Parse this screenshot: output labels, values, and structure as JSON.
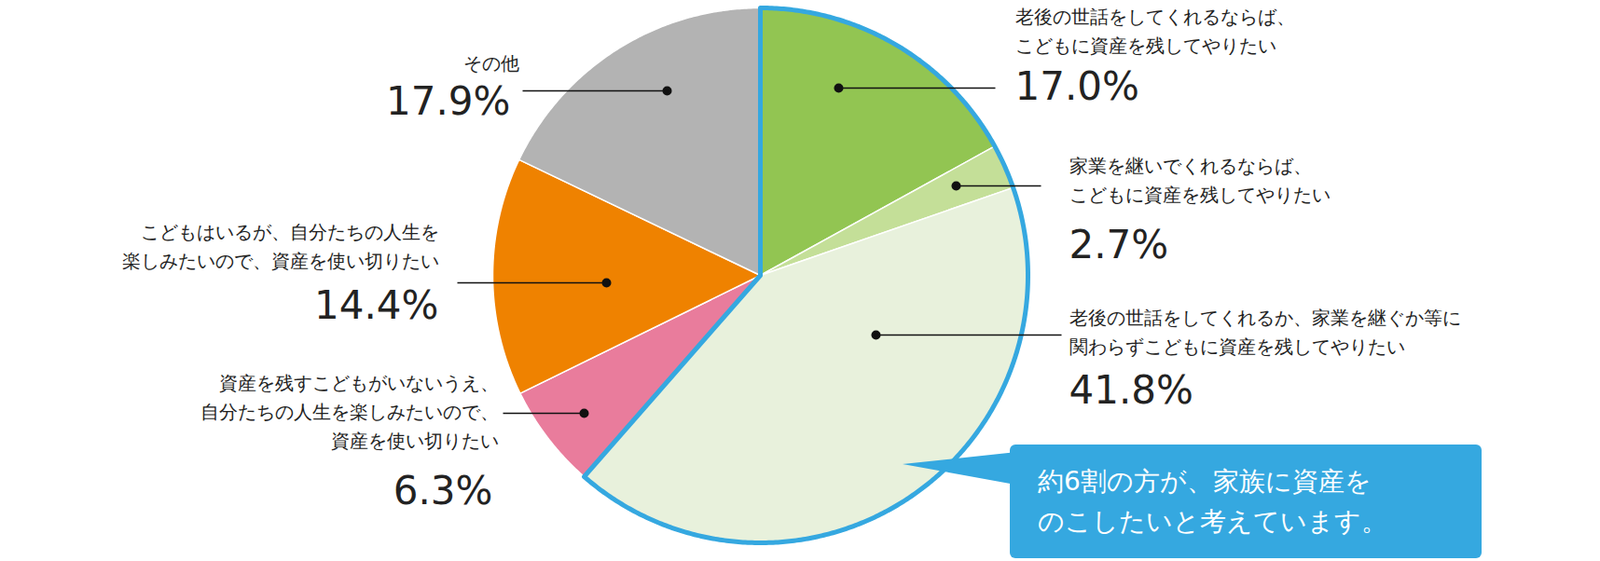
{
  "chart_data": {
    "type": "pie",
    "categories": [
      "老後の世話をしてくれるならば、\nこどもに資産を残してやりたい",
      "家業を継いでくれるならば、\nこどもに資産を残してやりたい",
      "老後の世話をしてくれるか、家業を継ぐか等に\n関わらずこどもに資産を残してやりたい",
      "資産を残すこどもがいないうえ、\n自分たちの人生を楽しみたいので、\n資産を使い切りたい",
      "こどもはいるが、自分たちの人生を\n楽しみたいので、資産を使い切りたい",
      "その他"
    ],
    "values": [
      17.0,
      2.7,
      41.8,
      6.3,
      14.4,
      17.9
    ],
    "value_labels": [
      "17.0%",
      "2.7%",
      "41.8%",
      "6.3%",
      "14.4%",
      "17.9%"
    ],
    "colors": [
      "#92c552",
      "#c4df98",
      "#e8f1dc",
      "#e97c9c",
      "#ef8200",
      "#b3b3b3"
    ],
    "data_labels": true,
    "annotations": [
      {
        "text": "約6割の方が、家族に資産を\nのこしたいと考えています。",
        "categories": [
          "老後の世話をしてくれるならば、\nこどもに資産を残してやりたい",
          "家業を継いでくれるならば、\nこどもに資産を残してやりたい",
          "老後の世話をしてくれるか、家業を継ぐか等に\n関わらずこどもに資産を残してやりたい"
        ]
      }
    ]
  }
}
